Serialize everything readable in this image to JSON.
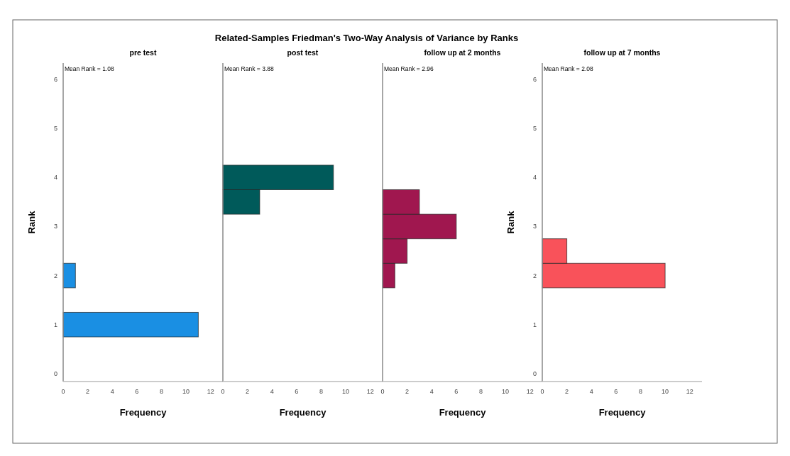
{
  "chart_data": [
    {
      "type": "histogram",
      "orientation": "horizontal",
      "subtitle": "pre test",
      "annotations": [
        "Mean Rank = 1.08"
      ],
      "xlabel": "Frequency",
      "ylabel": "Rank",
      "bins": [
        0.75,
        1.25,
        1.75,
        2.25
      ],
      "values": [
        11,
        0,
        1
      ],
      "color": "#1a8fe3",
      "xlim": [
        0,
        13
      ],
      "xticks": [
        0,
        2,
        4,
        6,
        8,
        10,
        12
      ],
      "ylim": [
        -0.16,
        6.33
      ],
      "yticks": [
        0,
        1,
        2,
        3,
        4,
        5,
        6
      ]
    },
    {
      "type": "histogram",
      "orientation": "horizontal",
      "title": "Related-Samples Friedman's Two-Way Analysis of Variance by Ranks",
      "subtitle": "post test",
      "annotations": [
        "Mean Rank = 3.88"
      ],
      "xlabel": "Frequency",
      "bins": [
        3.25,
        3.75,
        4.25
      ],
      "values": [
        3,
        9
      ],
      "color": "#005a5a",
      "xlim": [
        0,
        13
      ],
      "xticks": [
        0,
        2,
        4,
        6,
        8,
        10,
        12
      ],
      "ylim": [
        -0.16,
        6.33
      ],
      "tick_labels": "x"
    },
    {
      "type": "histogram",
      "orientation": "horizontal",
      "subtitle": "follow up at 2 months",
      "annotations": [
        "Mean Rank = 2.96"
      ],
      "xlabel": "Frequency",
      "bins": [
        1.75,
        2.25,
        2.75,
        3.25,
        3.75
      ],
      "values": [
        1,
        2,
        6,
        3
      ],
      "color": "#a0174f",
      "xlim": [
        0,
        13
      ],
      "xticks": [
        0,
        2,
        4,
        6,
        8,
        10,
        12
      ],
      "ylim": [
        -0.16,
        6.33
      ],
      "tick_labels": "x"
    },
    {
      "type": "histogram",
      "orientation": "horizontal",
      "subtitle": "follow up at 7 months",
      "annotations": [
        "Mean Rank = 2.08"
      ],
      "xlabel": "Frequency",
      "ylabel": "Rank",
      "bins": [
        1.75,
        2.25,
        2.75
      ],
      "values": [
        10,
        2
      ],
      "color": "#f9525a",
      "xlim": [
        0,
        13
      ],
      "xticks": [
        0,
        2,
        4,
        6,
        8,
        10,
        12
      ],
      "ylim": [
        -0.16,
        6.33
      ],
      "yticks": [
        0,
        1,
        2,
        3,
        4,
        5,
        6
      ]
    }
  ]
}
